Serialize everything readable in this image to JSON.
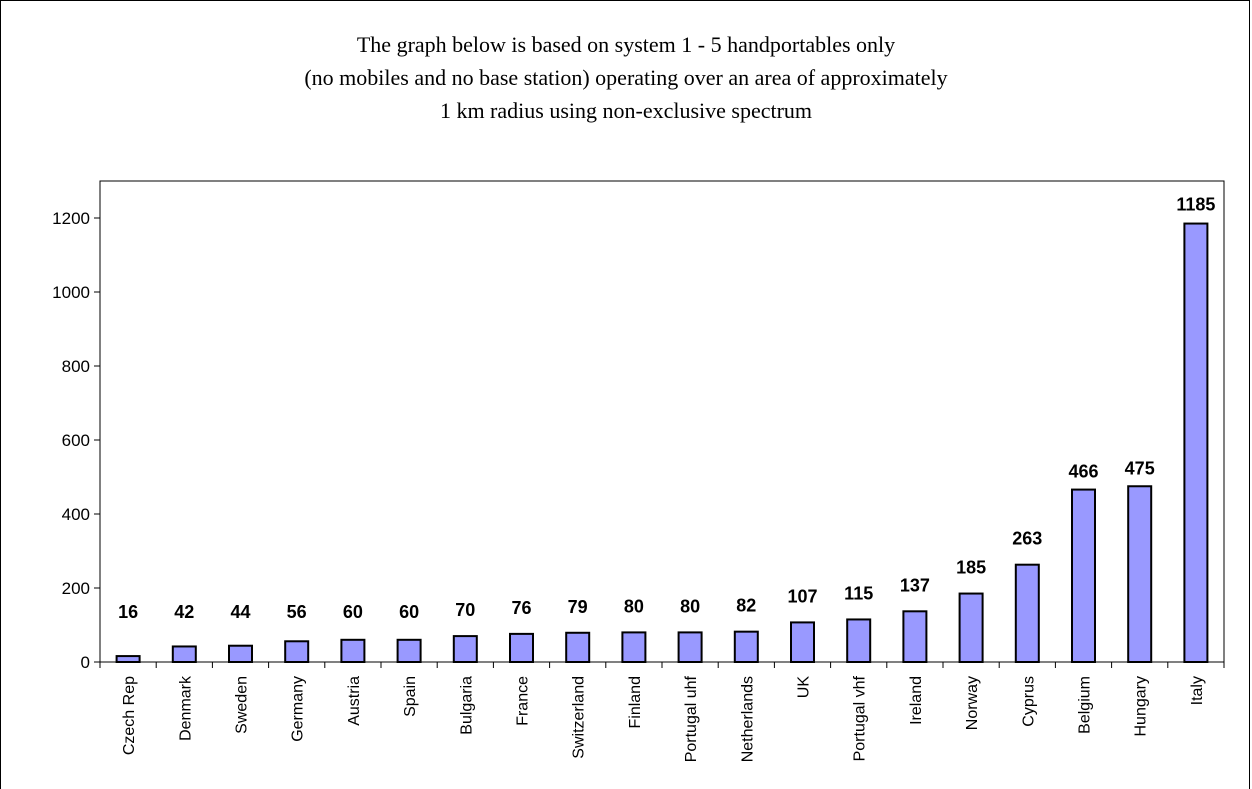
{
  "chart_data": {
    "type": "bar",
    "title_lines": [
      "The graph below is based on system 1 - 5 handportables only",
      "(no mobiles and no base station) operating over an area of approximately",
      "1 km radius using non-exclusive spectrum"
    ],
    "categories": [
      "Czech Rep",
      "Denmark",
      "Sweden",
      "Germany",
      "Austria",
      "Spain",
      "Bulgaria",
      "France",
      "Switzerland",
      "Finland",
      "Portugal uhf",
      "Netherlands",
      "UK",
      "Portugal vhf",
      "Ireland",
      "Norway",
      "Cyprus",
      "Belgium",
      "Hungary",
      "Italy"
    ],
    "values": [
      16,
      42,
      44,
      56,
      60,
      60,
      70,
      76,
      79,
      80,
      80,
      82,
      107,
      115,
      137,
      185,
      263,
      466,
      475,
      1185
    ],
    "ylim": [
      0,
      1300
    ],
    "yticks": [
      "0",
      "200",
      "400",
      "600",
      "800",
      "1000",
      "1200"
    ],
    "xlabel": "",
    "ylabel": "",
    "grid": false,
    "legend": "none",
    "bar_color": "#9999ff",
    "bar_stroke": "#000000"
  }
}
